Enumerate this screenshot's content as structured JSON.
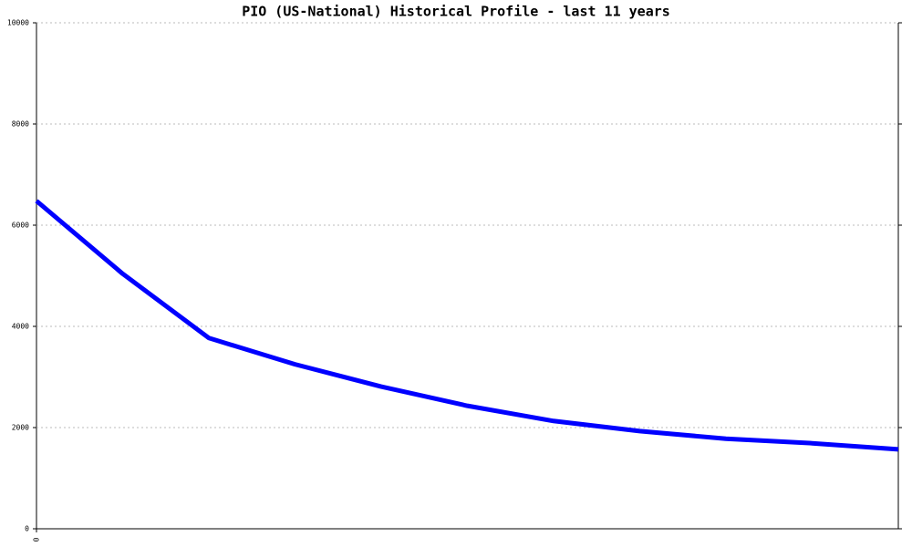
{
  "chart_data": {
    "type": "line",
    "title": "PIO (US-National) Historical Profile - last 11 years",
    "categories": [
      "0",
      null,
      null,
      null,
      null,
      null,
      null,
      null,
      null,
      null,
      null
    ],
    "series": [
      {
        "name": "PIO",
        "color": "#0000ff",
        "values": [
          6480,
          5040,
          3770,
          3250,
          2810,
          2430,
          2130,
          1930,
          1780,
          1690,
          1570
        ]
      }
    ],
    "ylim": [
      0,
      10000
    ],
    "yticks": [
      0,
      2000,
      4000,
      6000,
      8000,
      10000
    ],
    "grid": true
  }
}
